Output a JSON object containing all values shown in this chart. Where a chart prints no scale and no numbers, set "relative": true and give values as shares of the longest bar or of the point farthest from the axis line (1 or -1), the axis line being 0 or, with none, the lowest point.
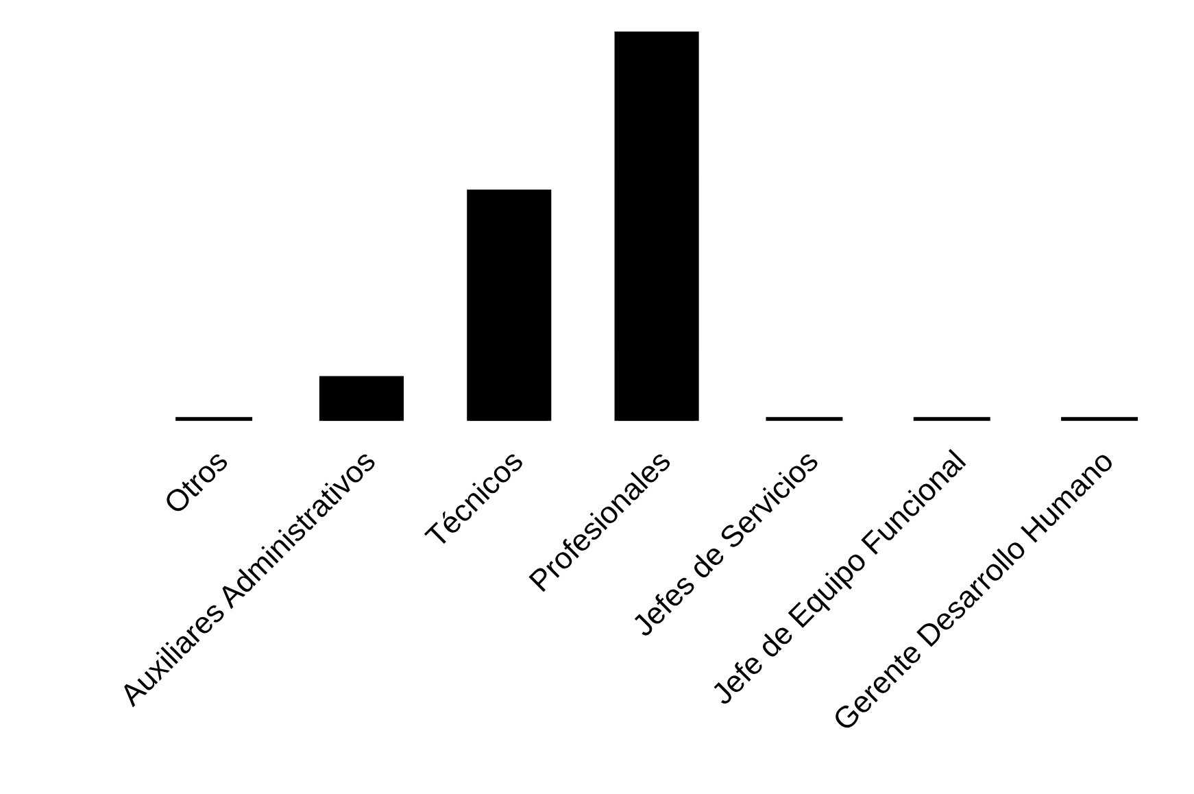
{
  "chart_data": {
    "type": "bar",
    "relative": true,
    "categories": [
      "Otros",
      "Auxiliares Administrativos",
      "Técnicos",
      "Profesionales",
      "Jefes de Servicios",
      "Jefe de Equipo Funcional",
      "Gerente Desarrollo Humano"
    ],
    "values": [
      0,
      0.106,
      0.59,
      1,
      0,
      0,
      0
    ],
    "color": "#000000",
    "grid": false,
    "legend": false
  }
}
